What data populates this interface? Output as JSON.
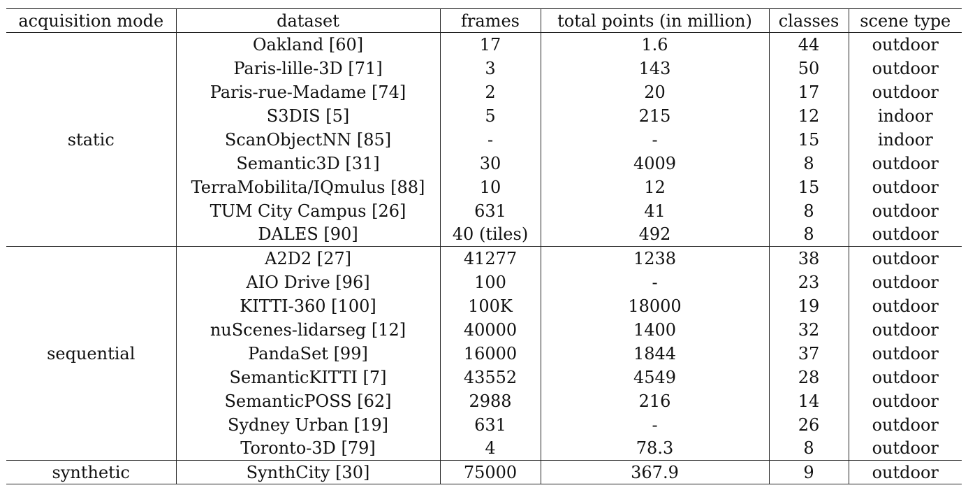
{
  "table": {
    "headers": [
      "acquisition mode",
      "dataset",
      "frames",
      "total points (in million)",
      "classes",
      "scene type"
    ],
    "groups": [
      {
        "mode": "static",
        "rows": [
          [
            "Oakland [60]",
            "17",
            "1.6",
            "44",
            "outdoor"
          ],
          [
            "Paris-lille-3D [71]",
            "3",
            "143",
            "50",
            "outdoor"
          ],
          [
            "Paris-rue-Madame [74]",
            "2",
            "20",
            "17",
            "outdoor"
          ],
          [
            "S3DIS [5]",
            "5",
            "215",
            "12",
            "indoor"
          ],
          [
            "ScanObjectNN [85]",
            "-",
            "-",
            "15",
            "indoor"
          ],
          [
            "Semantic3D [31]",
            "30",
            "4009",
            "8",
            "outdoor"
          ],
          [
            "TerraMobilita/IQmulus [88]",
            "10",
            "12",
            "15",
            "outdoor"
          ],
          [
            "TUM City Campus [26]",
            "631",
            "41",
            "8",
            "outdoor"
          ],
          [
            "DALES [90]",
            "40 (tiles)",
            "492",
            "8",
            "outdoor"
          ]
        ]
      },
      {
        "mode": "sequential",
        "rows": [
          [
            "A2D2 [27]",
            "41277",
            "1238",
            "38",
            "outdoor"
          ],
          [
            "AIO Drive [96]",
            "100",
            "-",
            "23",
            "outdoor"
          ],
          [
            "KITTI-360 [100]",
            "100K",
            "18000",
            "19",
            "outdoor"
          ],
          [
            "nuScenes-lidarseg [12]",
            "40000",
            "1400",
            "32",
            "outdoor"
          ],
          [
            "PandaSet [99]",
            "16000",
            "1844",
            "37",
            "outdoor"
          ],
          [
            "SemanticKITTI [7]",
            "43552",
            "4549",
            "28",
            "outdoor"
          ],
          [
            "SemanticPOSS [62]",
            "2988",
            "216",
            "14",
            "outdoor"
          ],
          [
            "Sydney Urban [19]",
            "631",
            "-",
            "26",
            "outdoor"
          ],
          [
            "Toronto-3D [79]",
            "4",
            "78.3",
            "8",
            "outdoor"
          ]
        ]
      },
      {
        "mode": "synthetic",
        "rows": [
          [
            "SynthCity [30]",
            "75000",
            "367.9",
            "9",
            "outdoor"
          ]
        ]
      }
    ]
  }
}
